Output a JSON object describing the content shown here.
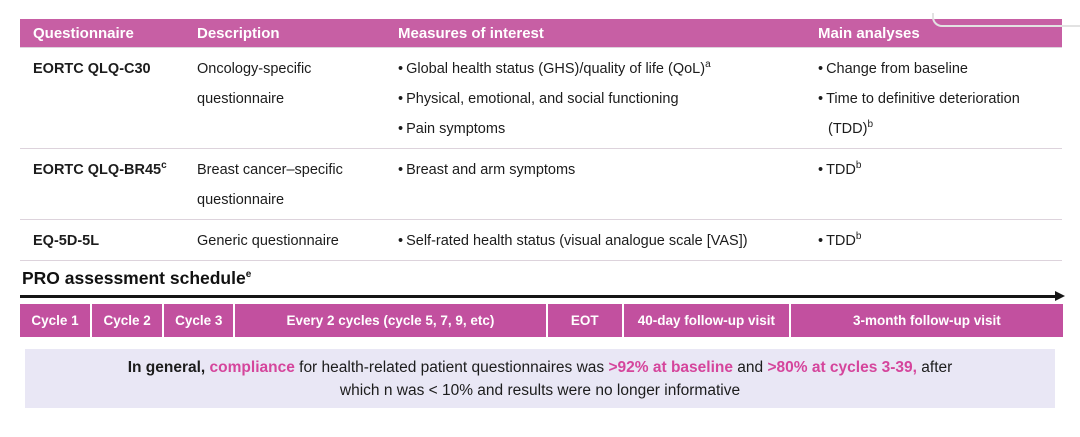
{
  "colors": {
    "header_pink": "#c75fa4",
    "bar_pink": "#c2509f",
    "note_background": "#e9e7f5",
    "accent_pink": "#d5459c"
  },
  "table": {
    "headers": [
      "Questionnaire",
      "Description",
      "Measures of interest",
      "Main analyses"
    ],
    "rows": [
      {
        "name": "EORTC QLQ-C30",
        "name_sup": "",
        "desc1": "Oncology-specific",
        "desc2": "questionnaire",
        "m1": "Global health status (GHS)/quality of life (QoL)",
        "m1_sup": "a",
        "m2": "Physical, emotional, and social functioning",
        "m3": "Pain symptoms",
        "a1": "Change from baseline",
        "a2": "Time to definitive deterioration",
        "a2b": "(TDD)",
        "a2b_sup": "b"
      },
      {
        "name": "EORTC QLQ-BR45",
        "name_sup": "c",
        "desc1": "Breast cancer–specific",
        "desc2": "questionnaire",
        "m1": "Breast and arm symptoms",
        "a1": "TDD",
        "a1_sup": "b"
      },
      {
        "name": "EQ-5D-5L",
        "name_sup": "",
        "desc1": "Generic questionnaire",
        "m1": "Self-rated health status (visual analogue scale [VAS])",
        "a1": "TDD",
        "a1_sup": "b"
      }
    ]
  },
  "schedule": {
    "title": "PRO assessment schedule",
    "title_sup": "e",
    "segments": [
      {
        "label": "Cycle 1"
      },
      {
        "label": "Cycle 2"
      },
      {
        "label": "Cycle 3"
      },
      {
        "label": "Every 2 cycles (cycle 5, 7, 9, etc)"
      },
      {
        "label": "EOT"
      },
      {
        "label": "40-day follow-up visit"
      },
      {
        "label": "3-month follow-up visit"
      }
    ]
  },
  "note": {
    "l1s1": "In general, ",
    "l1s2": "compliance",
    "l1s3": " for health-related patient questionnaires was ",
    "l1s4": ">92% at baseline",
    "l1s5": " and ",
    "l1s6": ">80% at cycles 3-39,",
    "l1s7": " after",
    "l2": "which n was < 10% and results were no longer informative"
  }
}
